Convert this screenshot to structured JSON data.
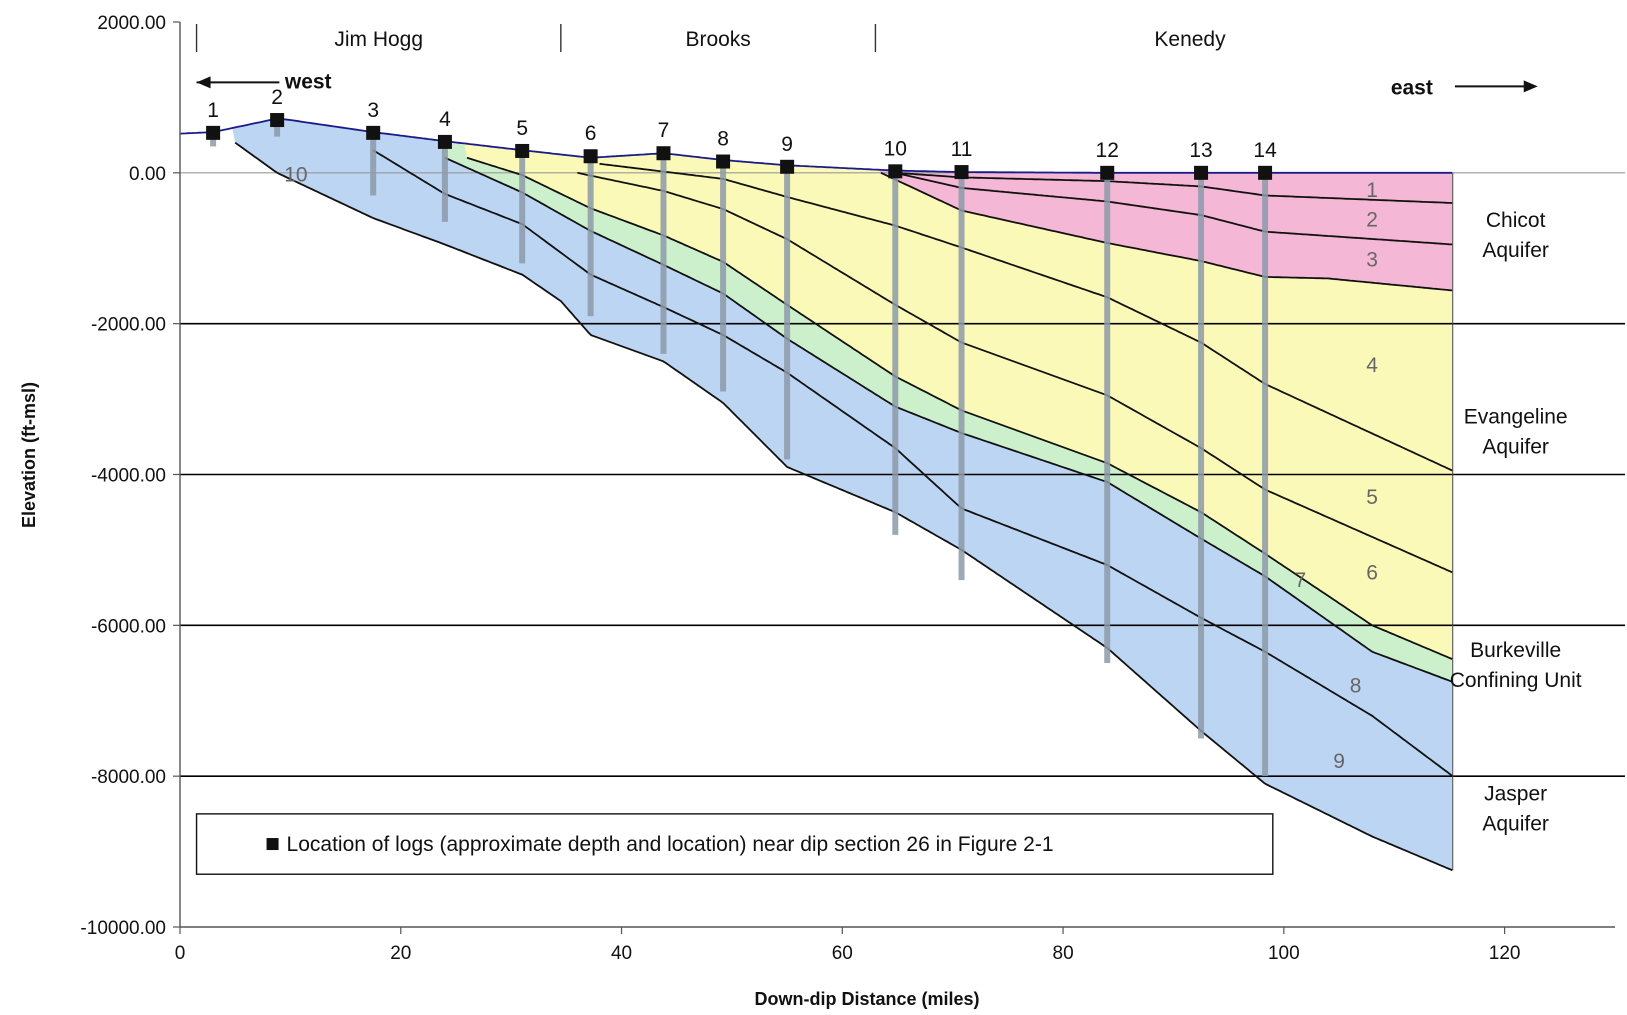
{
  "chart_data": {
    "type": "area",
    "xlabel": "Down-dip Distance (miles)",
    "ylabel": "Elevation (ft-msl)",
    "xlim": [
      0,
      130
    ],
    "ylim": [
      -10000,
      2000
    ],
    "xticks": [
      "0",
      "20",
      "40",
      "60",
      "80",
      "100",
      "120"
    ],
    "yticks": [
      "2000.00",
      "0.00",
      "-2000.00",
      "-4000.00",
      "-6000.00",
      "-8000.00",
      "-10000.00"
    ],
    "grid": "horizontal",
    "counties": [
      {
        "name": "Jim Hogg",
        "x_start": 1.5,
        "x_end": 34.5
      },
      {
        "name": "Brooks",
        "x_start": 34.5,
        "x_end": 63
      },
      {
        "name": "Kenedy",
        "x_start": 63,
        "x_end": 130
      }
    ],
    "direction_labels": {
      "west": "west",
      "east": "east"
    },
    "aquifers": [
      {
        "name": "Chicot\nAquifer",
        "y": -800
      },
      {
        "name": "Evangeline\nAquifer",
        "y": -3400
      },
      {
        "name": "Burkeville\nConfining Unit",
        "y": -6500
      },
      {
        "name": "Jasper\nAquifer",
        "y": -8400
      }
    ],
    "logs": [
      {
        "label": "1",
        "x": 3,
        "top": 530,
        "bottom": 350
      },
      {
        "label": "2",
        "x": 8.8,
        "top": 700,
        "bottom": 480
      },
      {
        "label": "3",
        "x": 17.5,
        "top": 530,
        "bottom": -300
      },
      {
        "label": "4",
        "x": 24,
        "top": 410,
        "bottom": -650
      },
      {
        "label": "5",
        "x": 31,
        "top": 290,
        "bottom": -1200
      },
      {
        "label": "6",
        "x": 37.2,
        "top": 220,
        "bottom": -1900
      },
      {
        "label": "7",
        "x": 43.8,
        "top": 260,
        "bottom": -2400
      },
      {
        "label": "8",
        "x": 49.2,
        "top": 150,
        "bottom": -2900
      },
      {
        "label": "9",
        "x": 55,
        "top": 80,
        "bottom": -3800
      },
      {
        "label": "10",
        "x": 64.8,
        "top": 20,
        "bottom": -4800
      },
      {
        "label": "11",
        "x": 70.8,
        "top": 10,
        "bottom": -5400
      },
      {
        "label": "12",
        "x": 84,
        "top": 0,
        "bottom": -6500
      },
      {
        "label": "13",
        "x": 92.5,
        "top": 0,
        "bottom": -7500
      },
      {
        "label": "14",
        "x": 98.3,
        "top": 0,
        "bottom": -8000
      }
    ],
    "surface": {
      "x": [
        0,
        3,
        8.8,
        10,
        17.5,
        24,
        31,
        37.2,
        43.8,
        49.2,
        55,
        64.8,
        70.8,
        84,
        92.5,
        98.3,
        115.3
      ],
      "y": [
        520,
        540,
        720,
        700,
        540,
        420,
        300,
        200,
        260,
        170,
        100,
        30,
        10,
        0,
        0,
        0,
        0
      ]
    },
    "boundaries": [
      {
        "name": "1",
        "x": [
          64.8,
          70.8,
          84,
          92.5,
          98.3,
          115.3
        ],
        "y": [
          0,
          -60,
          -110,
          -180,
          -300,
          -400
        ]
      },
      {
        "name": "2",
        "x": [
          64.8,
          70.8,
          84,
          92.5,
          98.3,
          115.3
        ],
        "y": [
          0,
          -200,
          -380,
          -560,
          -780,
          -950
        ]
      },
      {
        "name": "3",
        "x": [
          63.5,
          70.8,
          84,
          92.5,
          98.3,
          104,
          115.3
        ],
        "y": [
          0,
          -500,
          -930,
          -1170,
          -1380,
          -1400,
          -1560
        ]
      },
      {
        "name": "4",
        "x": [
          38,
          49.2,
          55,
          64.8,
          70.8,
          84,
          92.5,
          98.3,
          115.3
        ],
        "y": [
          120,
          -80,
          -320,
          -700,
          -990,
          -1650,
          -2250,
          -2800,
          -3950
        ]
      },
      {
        "name": "5",
        "x": [
          36,
          43.8,
          49.2,
          55,
          64.8,
          70.8,
          84,
          92.5,
          98.3,
          115.3
        ],
        "y": [
          0,
          -240,
          -480,
          -880,
          -1750,
          -2250,
          -2950,
          -3650,
          -4200,
          -5300
        ]
      },
      {
        "name": "6",
        "x": [
          26,
          31,
          37.2,
          43.8,
          49.2,
          55,
          64.8,
          70.8,
          84,
          92.5,
          98.3,
          108,
          115.3
        ],
        "y": [
          200,
          -30,
          -470,
          -830,
          -1180,
          -1750,
          -2700,
          -3150,
          -3850,
          -4500,
          -5050,
          -6000,
          -6450
        ]
      },
      {
        "name": "7",
        "x": [
          24,
          31,
          37.2,
          43.8,
          49.2,
          55,
          64.8,
          70.8,
          84,
          92.5,
          98.3,
          108,
          115.3
        ],
        "y": [
          200,
          -260,
          -770,
          -1220,
          -1600,
          -2200,
          -3100,
          -3450,
          -4100,
          -4850,
          -5350,
          -6350,
          -6750
        ]
      },
      {
        "name": "8",
        "x": [
          17.5,
          24,
          31,
          37.2,
          43.8,
          49.2,
          55,
          64.8,
          70.8,
          84,
          92.5,
          98.3,
          108,
          115.3
        ],
        "y": [
          300,
          -280,
          -680,
          -1350,
          -1780,
          -2150,
          -2650,
          -3650,
          -4450,
          -5200,
          -5900,
          -6350,
          -7200,
          -8000
        ]
      },
      {
        "name": "9",
        "x": [
          5,
          8.8,
          17.5,
          24,
          31,
          34.5,
          37.2,
          43.8,
          49.2,
          55,
          64.8,
          70.8,
          84,
          92.5,
          98.3,
          108,
          115.3
        ],
        "y": [
          400,
          0,
          -600,
          -950,
          -1350,
          -1700,
          -2150,
          -2500,
          -3050,
          -3900,
          -4500,
          -5000,
          -6300,
          -7400,
          -8100,
          -8800,
          -9250
        ]
      }
    ],
    "unit_labels": [
      {
        "label": "1",
        "x": 108,
        "y": -230
      },
      {
        "label": "2",
        "x": 108,
        "y": -620
      },
      {
        "label": "3",
        "x": 108,
        "y": -1150
      },
      {
        "label": "4",
        "x": 108,
        "y": -2550
      },
      {
        "label": "5",
        "x": 108,
        "y": -4300
      },
      {
        "label": "6",
        "x": 108,
        "y": -5300
      },
      {
        "label": "7",
        "x": 101.5,
        "y": -5400
      },
      {
        "label": "8",
        "x": 106.5,
        "y": -6800
      },
      {
        "label": "9",
        "x": 105,
        "y": -7800
      },
      {
        "label": "10",
        "x": 10.5,
        "y": -20
      }
    ],
    "fills": {
      "pink": "#f4b8d6",
      "yellow": "#fbf9b7",
      "green": "#cdf0cc",
      "blue": "#bcd5f2",
      "surface_line": "#1a1a8a",
      "log_bar": "#8c9aa8"
    },
    "legend": {
      "text": "Location of logs (approximate depth and location) near dip section 26 in Figure 2-1",
      "x_start": 1.5,
      "x_end": 99,
      "y_top": -8500,
      "y_bottom": -9300
    }
  }
}
